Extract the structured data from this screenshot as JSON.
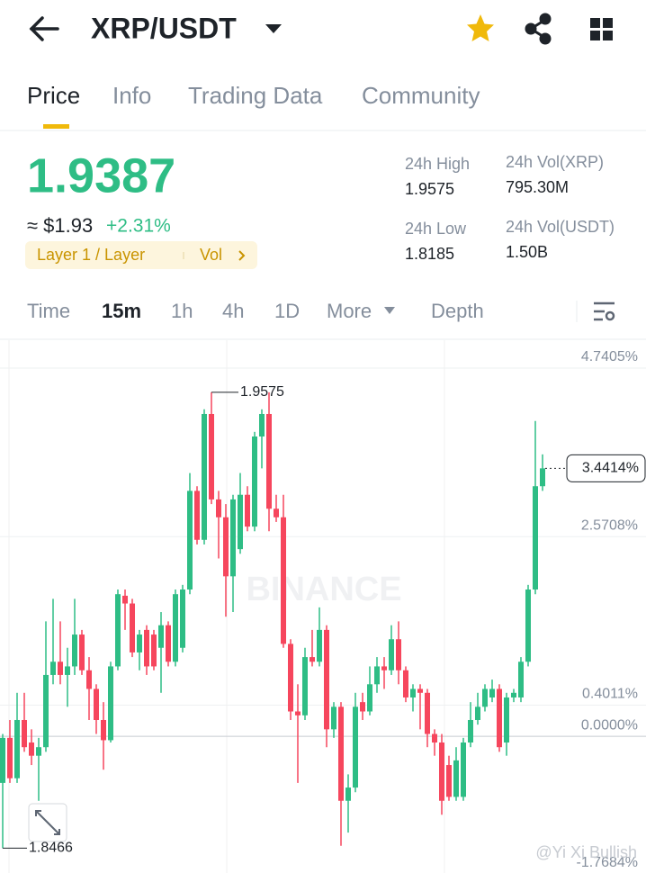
{
  "header": {
    "pair": "XRP/USDT"
  },
  "tabs": [
    "Price",
    "Info",
    "Trading Data",
    "Community"
  ],
  "price": {
    "last": "1.9387",
    "fiat": "≈ $1.93",
    "change": "+2.31%",
    "tag": "Layer 1 / Layer",
    "tag_link": "Vol"
  },
  "stats": [
    {
      "label": "24h High",
      "value": "1.9575"
    },
    {
      "label": "24h Vol(XRP)",
      "value": "795.30M"
    },
    {
      "label": "24h Low",
      "value": "1.8185"
    },
    {
      "label": "24h Vol(USDT)",
      "value": "1.50B"
    }
  ],
  "intervals": [
    "Time",
    "15m",
    "1h",
    "4h",
    "1D",
    "More",
    "Depth"
  ],
  "chart_data": {
    "type": "candlestick",
    "ylim": [
      -1.76,
      5.1
    ],
    "yticks": [
      {
        "value": 4.7405,
        "label": "4.7405%"
      },
      {
        "value": 2.5708,
        "label": "2.5708%"
      },
      {
        "value": 0.4011,
        "label": "0.4011%"
      },
      {
        "value": 0,
        "label": "0.0000%"
      },
      {
        "value": -1.7684,
        "label": "-1.7684%"
      }
    ],
    "up_color": "#2ebd85",
    "down_color": "#f6465d",
    "open": [
      -0.6,
      -0.02,
      -0.54,
      0.21,
      -0.08,
      -0.25,
      -0.14,
      0.79,
      0.96,
      0.79,
      0.9,
      1.31,
      0.85,
      0.61,
      0.21,
      -0.05,
      0.9,
      1.81,
      1.71,
      1.08,
      1.37,
      1.31,
      1.14,
      1.43,
      0.96,
      1.14,
      1.89,
      3.16,
      2.53,
      4.15,
      3.05,
      2.82,
      2.06,
      2.41,
      3.11,
      2.7,
      3.86,
      4.15,
      2.93,
      2.82,
      1.19,
      0.32,
      0.27,
      1.02,
      0.96,
      1.37,
      0.09,
      0.38,
      -0.83,
      -0.66,
      0.44,
      0.32,
      0.67,
      0.9,
      0.85,
      1.25,
      0.85,
      0.5,
      0.61,
      0.56,
      0.03,
      -0.08,
      -0.37,
      -0.78,
      -0.78,
      -0.08,
      0.21,
      0.38,
      0.5,
      0.61,
      -0.08,
      0.5,
      0.5,
      0.96,
      1.89,
      3.22
    ],
    "high": [
      0.03,
      0.21,
      0.56,
      0.56,
      0.09,
      -0.02,
      1.48,
      1.77,
      1.48,
      1.14,
      1.77,
      1.37,
      1.02,
      0.67,
      0.44,
      0.96,
      1.89,
      1.89,
      1.77,
      1.37,
      1.43,
      1.37,
      1.6,
      1.48,
      1.89,
      1.95,
      3.39,
      3.22,
      4.21,
      4.43,
      3.16,
      2.99,
      3.11,
      3.39,
      3.22,
      3.92,
      4.21,
      4.43,
      3.11,
      3.11,
      1.25,
      0.67,
      1.14,
      1.37,
      1.66,
      1.43,
      0.44,
      0.44,
      -0.49,
      0.56,
      0.56,
      0.9,
      1.02,
      1.02,
      1.43,
      1.48,
      0.9,
      0.67,
      0.67,
      0.61,
      0.09,
      0.03,
      -0.25,
      -0.14,
      -0.02,
      0.44,
      0.56,
      0.67,
      0.73,
      0.67,
      0.56,
      0.61,
      1.02,
      1.95,
      4.06,
      3.63
    ],
    "low": [
      -1.44,
      -0.6,
      -0.6,
      -0.2,
      -0.37,
      -0.83,
      -0.2,
      0.67,
      0.67,
      0.38,
      0.79,
      0.79,
      0.21,
      0.03,
      -0.43,
      -0.08,
      0.85,
      1.37,
      1.02,
      0.85,
      0.79,
      0.85,
      0.56,
      0.9,
      0.9,
      1.08,
      1.83,
      2.47,
      2.47,
      2.99,
      2.29,
      1.54,
      1.6,
      2.35,
      2.64,
      2.64,
      3.45,
      2.64,
      2.76,
      1.14,
      0.21,
      -0.6,
      0.21,
      0.9,
      0.9,
      -0.14,
      -0.02,
      -1.41,
      -1.24,
      -0.72,
      0.21,
      0.27,
      0.56,
      0.61,
      0.79,
      0.67,
      0.44,
      0.32,
      0.09,
      -0.14,
      -0.25,
      -1.01,
      -0.83,
      -0.83,
      -0.83,
      -0.14,
      0.15,
      0.32,
      0.44,
      -0.2,
      -0.25,
      0.44,
      0.44,
      0.9,
      1.83,
      3.16
    ],
    "close": [
      -0.02,
      -0.54,
      0.21,
      -0.14,
      -0.25,
      -0.14,
      0.79,
      0.96,
      0.79,
      0.9,
      1.31,
      0.85,
      0.61,
      0.21,
      -0.05,
      0.9,
      1.83,
      1.71,
      1.08,
      1.31,
      0.9,
      0.9,
      1.43,
      0.96,
      1.83,
      1.89,
      3.16,
      2.53,
      4.15,
      3.05,
      2.82,
      2.06,
      3.05,
      3.11,
      2.7,
      3.86,
      4.15,
      2.93,
      2.82,
      1.19,
      0.32,
      0.27,
      1.02,
      0.96,
      1.37,
      0.09,
      0.38,
      -0.83,
      -0.66,
      0.38,
      0.32,
      0.67,
      0.9,
      0.85,
      1.25,
      0.85,
      0.5,
      0.61,
      0.56,
      0.03,
      -0.08,
      -0.83,
      -0.78,
      -0.31,
      -0.08,
      0.21,
      0.38,
      0.61,
      0.61,
      -0.14,
      0.5,
      0.56,
      0.96,
      1.89,
      3.22,
      3.45
    ],
    "annotations": {
      "high": "1.9575",
      "low": "1.8466",
      "last": "3.4414%"
    },
    "watermark": "BINANCE",
    "credit": "@Yi Xi Bullish"
  }
}
